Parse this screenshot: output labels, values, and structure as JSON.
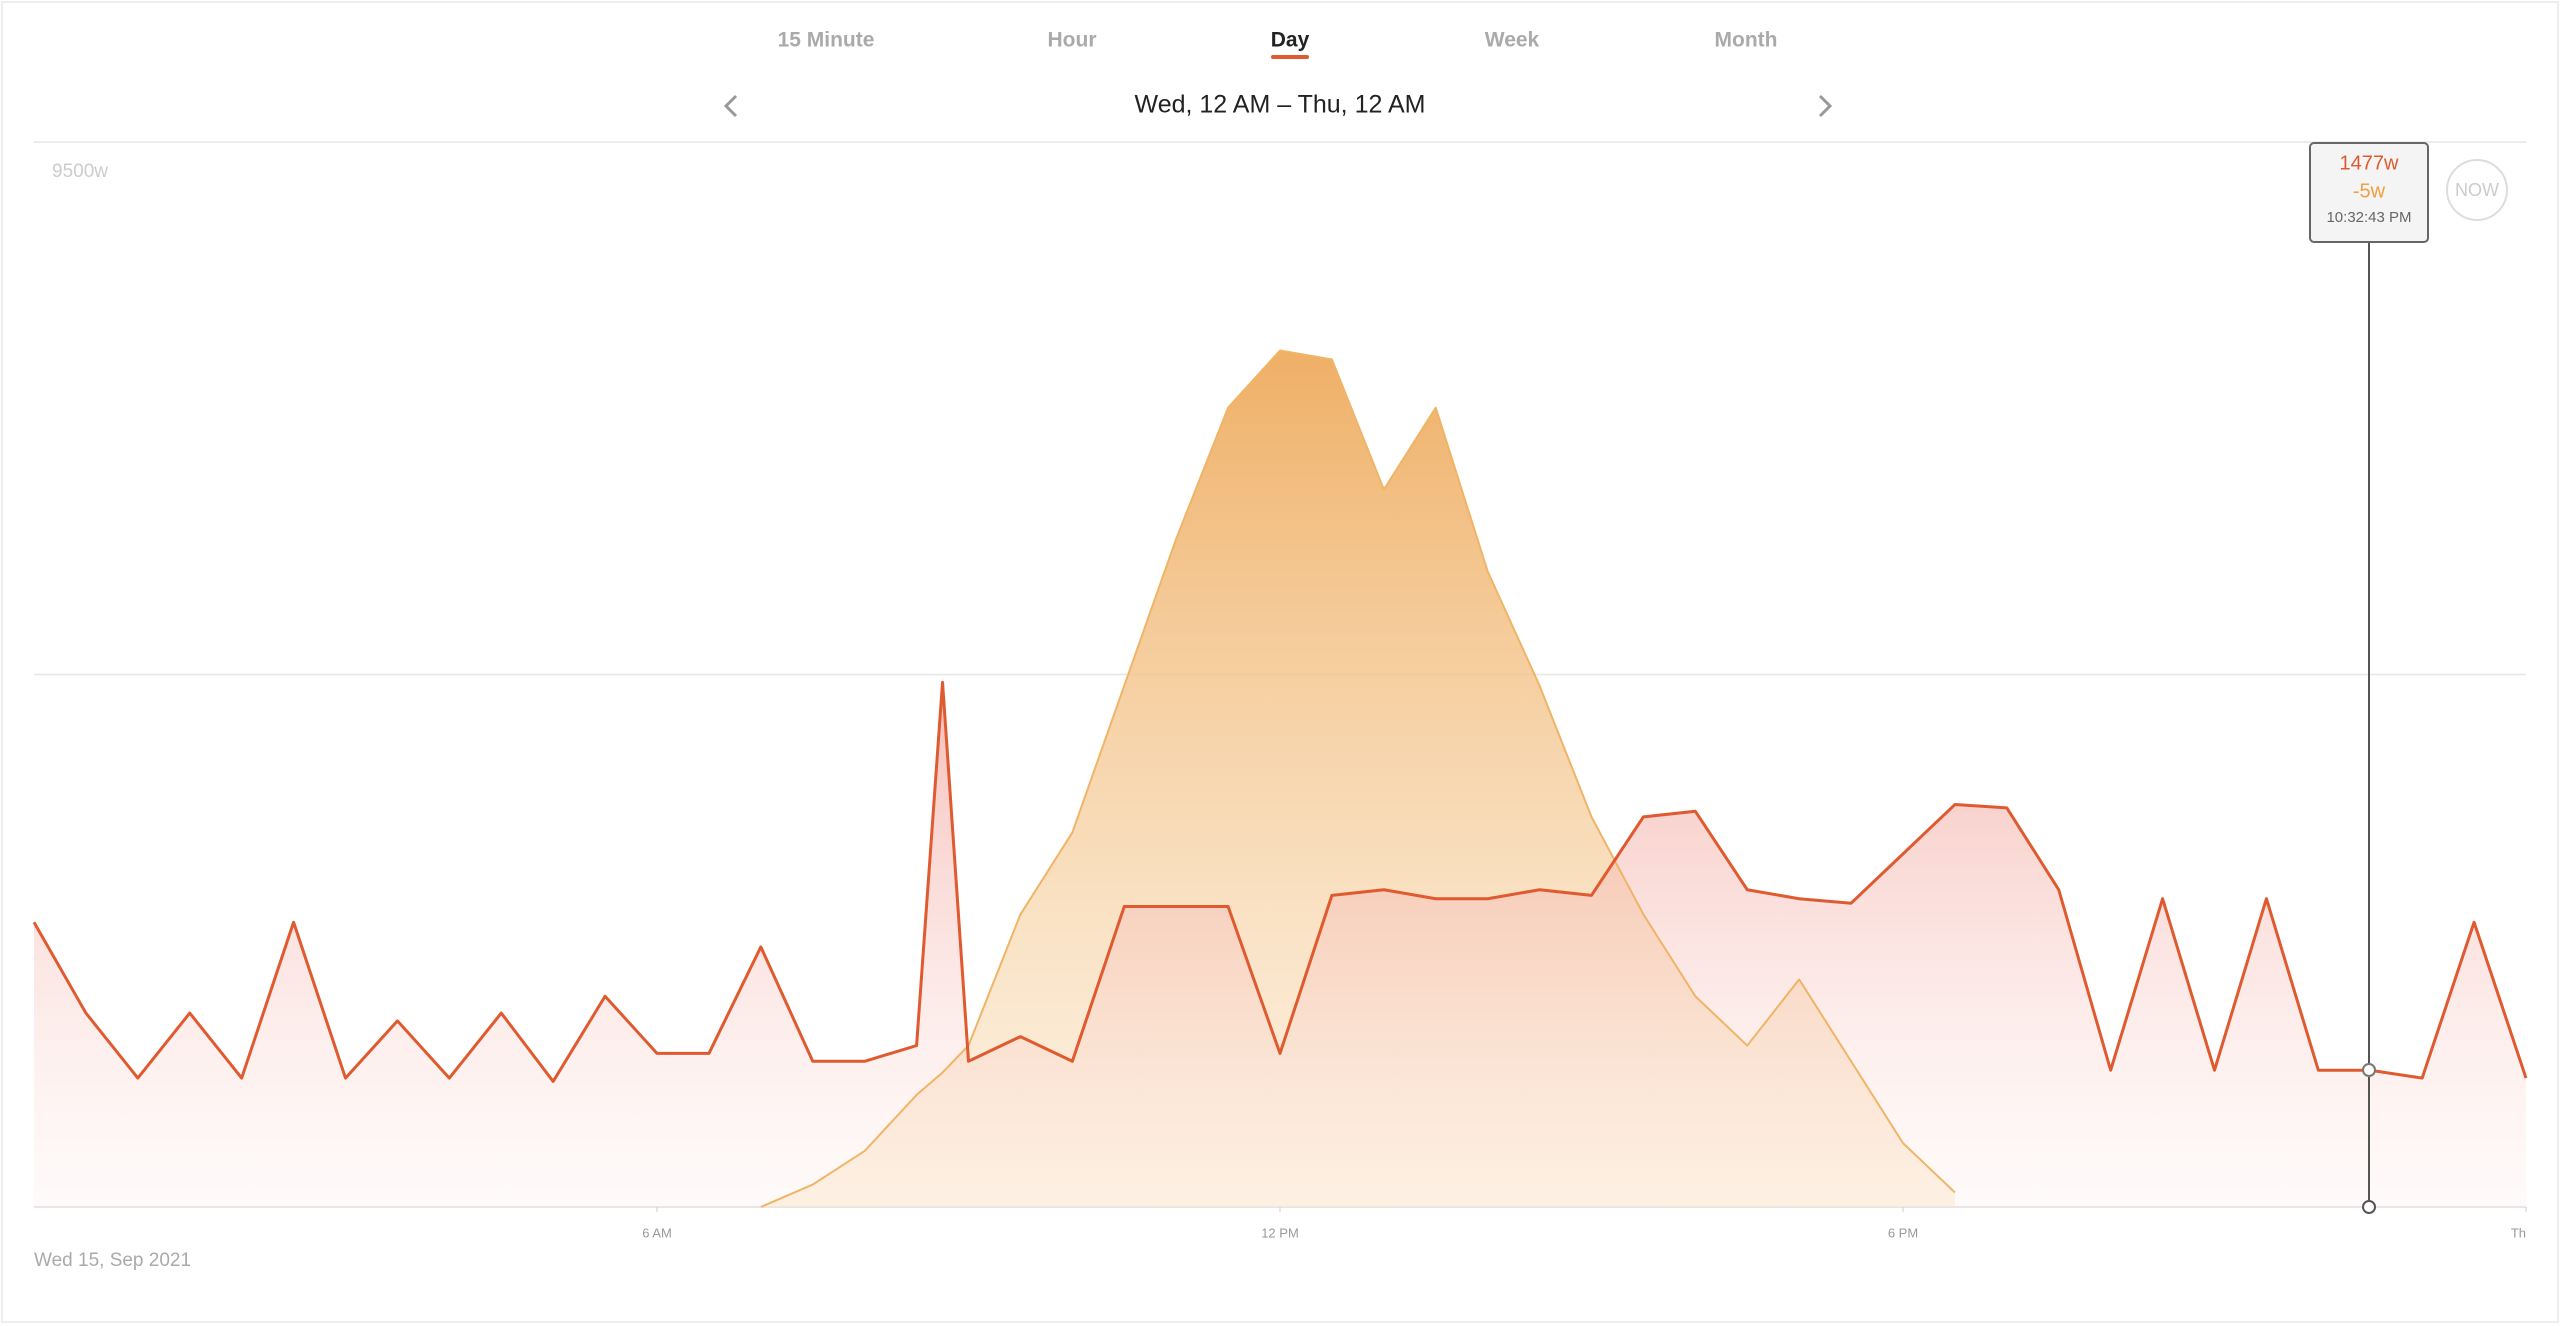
{
  "tabs": [
    "15 Minute",
    "Hour",
    "Day",
    "Week",
    "Month"
  ],
  "active_tab": 2,
  "range_label": "Wed, 12 AM – Thu, 12 AM",
  "date_label": "Wed 15, Sep 2021",
  "now_button": "NOW",
  "tooltip": {
    "consumption": "1477w",
    "solar": "-5w",
    "time": "10:32:43 PM"
  },
  "chart_data": {
    "type": "line",
    "x": [
      0,
      0.5,
      1,
      1.5,
      2,
      2.5,
      3,
      3.5,
      4,
      4.5,
      5,
      5.5,
      6,
      6.5,
      7,
      7.5,
      8,
      8.5,
      8.75,
      9,
      9.5,
      10,
      10.5,
      11,
      11.5,
      12,
      12.5,
      13,
      13.5,
      14,
      14.5,
      15,
      15.5,
      16,
      16.5,
      17,
      17.5,
      18,
      18.5,
      19,
      19.5,
      20,
      20.5,
      21,
      21.5,
      22,
      22.5,
      23,
      23.5,
      24
    ],
    "series": [
      {
        "color": "#f0b466",
        "values": [
          null,
          null,
          null,
          null,
          null,
          null,
          null,
          null,
          null,
          null,
          null,
          null,
          null,
          null,
          0,
          200,
          500,
          1000,
          1200,
          1440,
          2610,
          3340,
          4650,
          5960,
          7130,
          7640,
          7560,
          6400,
          7130,
          5670,
          4650,
          3480,
          2610,
          1880,
          1440,
          2030,
          1300,
          570,
          130,
          null,
          null,
          null,
          null,
          null,
          null,
          null,
          null,
          null,
          null,
          null
        ]
      },
      {
        "color": "#e05a30",
        "values": [
          2540,
          1730,
          1150,
          1730,
          1150,
          2540,
          1150,
          1660,
          1150,
          1730,
          1120,
          1880,
          1370,
          1370,
          2320,
          1300,
          1300,
          1440,
          4680,
          1300,
          1520,
          1300,
          2680,
          2680,
          2680,
          1370,
          2780,
          2830,
          2750,
          2750,
          2830,
          2780,
          3480,
          3530,
          2830,
          2750,
          2710,
          3150,
          3590,
          3560,
          2830,
          1220,
          2750,
          1220,
          2750,
          1220,
          1220,
          1150,
          2540,
          1150
        ]
      }
    ],
    "xlim": [
      0,
      24
    ],
    "xticks": [
      {
        "value": 6,
        "label": "6 AM"
      },
      {
        "value": 12,
        "label": "12 PM"
      },
      {
        "value": 18,
        "label": "6 PM"
      },
      {
        "value": 24,
        "label": "Th"
      }
    ],
    "ylim": [
      0,
      9500
    ],
    "yticks": [
      {
        "value": 4750,
        "label": null
      },
      {
        "value": 9500,
        "label": "9500w"
      }
    ],
    "grid": true
  }
}
